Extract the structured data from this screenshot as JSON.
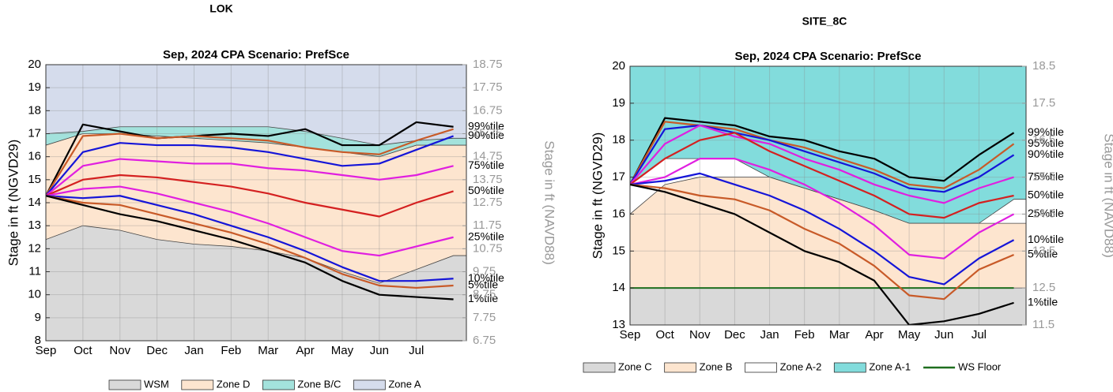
{
  "chart_data": [
    {
      "type": "line",
      "suptitle": "LOK",
      "title": "Sep, 2024  CPA Scenario: PrefSce",
      "ylabel": "Stage in ft (NGVD29)",
      "y2label": "Stage in ft (NAVD88)",
      "categories": [
        "Sep",
        "Oct",
        "Nov",
        "Dec",
        "Jan",
        "Feb",
        "Mar",
        "Apr",
        "May",
        "Jun",
        "Jul",
        null
      ],
      "ylim": [
        8,
        20
      ],
      "yticks": [
        8,
        9,
        10,
        11,
        12,
        13,
        14,
        15,
        16,
        17,
        18,
        19,
        20
      ],
      "y2lim": [
        6.75,
        18.75
      ],
      "y2ticks": [
        6.75,
        7.75,
        8.75,
        9.75,
        10.75,
        11.75,
        12.75,
        13.75,
        14.75,
        15.75,
        16.75,
        17.75,
        18.75
      ],
      "grid": true,
      "areas": [
        {
          "name": "WSM",
          "color": "#d9d9d9",
          "values": [
            12.4,
            13.0,
            12.8,
            12.4,
            12.2,
            12.1,
            11.9,
            11.6,
            11.0,
            10.5,
            11.1,
            11.7
          ]
        },
        {
          "name": "Zone D",
          "color": "#fde5cf",
          "values": [
            16.5,
            17.0,
            17.0,
            16.9,
            16.8,
            16.7,
            16.6,
            16.4,
            16.2,
            16.0,
            16.5,
            16.5
          ]
        },
        {
          "name": "Zone B/C",
          "color": "#a3e2dc",
          "values": [
            17.0,
            17.1,
            17.3,
            17.3,
            17.3,
            17.3,
            17.3,
            17.1,
            16.8,
            16.5,
            16.7,
            16.8
          ]
        },
        {
          "name": "Zone A",
          "color": "#d5dcec"
        }
      ],
      "series": [
        {
          "name": "99%tile",
          "color": "#000000",
          "values": [
            14.3,
            17.4,
            17.1,
            16.8,
            16.9,
            17.0,
            16.9,
            17.2,
            16.5,
            16.5,
            17.5,
            17.3
          ]
        },
        {
          "color": "#c85a28",
          "values": [
            14.3,
            16.9,
            17.0,
            16.8,
            16.9,
            16.8,
            16.7,
            16.4,
            16.2,
            16.1,
            16.7,
            17.2
          ]
        },
        {
          "name": "90%tile",
          "color": "#1515d8",
          "values": [
            14.3,
            16.2,
            16.6,
            16.5,
            16.5,
            16.4,
            16.2,
            15.9,
            15.6,
            15.7,
            16.3,
            16.9
          ]
        },
        {
          "name": "75%tile",
          "color": "#e01fe0",
          "values": [
            14.3,
            15.6,
            15.9,
            15.8,
            15.7,
            15.7,
            15.5,
            15.4,
            15.2,
            15.0,
            15.2,
            15.6
          ]
        },
        {
          "name": "50%tile",
          "color": "#d42020",
          "values": [
            14.3,
            15.0,
            15.2,
            15.1,
            14.9,
            14.7,
            14.4,
            14.0,
            13.7,
            13.4,
            14.0,
            14.5
          ]
        },
        {
          "name": "25%tile",
          "color": "#e01fe0",
          "values": [
            14.3,
            14.6,
            14.7,
            14.4,
            14.0,
            13.6,
            13.1,
            12.5,
            11.9,
            11.7,
            12.1,
            12.5
          ]
        },
        {
          "name": "10%tile",
          "color": "#1515d8",
          "values": [
            14.3,
            14.2,
            14.3,
            13.9,
            13.5,
            13.0,
            12.5,
            11.9,
            11.2,
            10.6,
            10.6,
            10.7
          ]
        },
        {
          "name": "5%tile",
          "color": "#c85a28",
          "values": [
            14.3,
            14.0,
            13.9,
            13.5,
            13.1,
            12.7,
            12.2,
            11.6,
            10.9,
            10.4,
            10.3,
            10.4
          ]
        },
        {
          "name": "1%tile",
          "color": "#000000",
          "values": [
            14.3,
            13.9,
            13.5,
            13.2,
            12.8,
            12.4,
            11.9,
            11.4,
            10.6,
            10.0,
            9.9,
            9.8
          ]
        }
      ],
      "reference_lines": []
    },
    {
      "type": "line",
      "suptitle": "SITE_8C",
      "title": "Sep, 2024  CPA Scenario: PrefSce",
      "ylabel": "Stage in ft (NGVD29)",
      "y2label": "Stage in ft (NAVD88)",
      "categories": [
        "Sep",
        "Oct",
        "Nov",
        "Dec",
        "Jan",
        "Feb",
        "Mar",
        "Apr",
        "May",
        "Jun",
        "Jul",
        null
      ],
      "ylim": [
        13,
        20
      ],
      "yticks": [
        13,
        14,
        15,
        16,
        17,
        18,
        19,
        20
      ],
      "y2lim": [
        11.5,
        18.5
      ],
      "y2ticks": [
        11.5,
        12.5,
        13.5,
        14.5,
        15.5,
        16.5,
        17.5,
        18.5
      ],
      "grid": true,
      "areas": [
        {
          "name": "Zone C",
          "color": "#d9d9d9",
          "values": [
            14,
            14,
            14,
            14,
            14,
            14,
            14,
            14,
            14,
            14,
            14,
            14
          ]
        },
        {
          "name": "Zone B",
          "color": "#fde5cf",
          "values": [
            16.0,
            16.8,
            17.0,
            17.0,
            17.0,
            16.7,
            16.4,
            16.1,
            15.75,
            15.75,
            15.75,
            15.75
          ]
        },
        {
          "name": "Zone A-2",
          "color": "#ffffff",
          "values": [
            16.8,
            17.5,
            17.5,
            17.5,
            17.0,
            16.7,
            16.4,
            16.1,
            15.75,
            15.75,
            15.75,
            16.4
          ]
        },
        {
          "name": "Zone A-1",
          "color": "#82dcdc"
        }
      ],
      "series": [
        {
          "name": "99%tile",
          "color": "#000000",
          "values": [
            16.8,
            18.6,
            18.5,
            18.4,
            18.1,
            18.0,
            17.7,
            17.5,
            17.0,
            16.9,
            17.6,
            18.2
          ]
        },
        {
          "name": "95%tile",
          "color": "#c85a28",
          "values": [
            16.8,
            18.5,
            18.4,
            18.3,
            18.0,
            17.8,
            17.5,
            17.2,
            16.8,
            16.7,
            17.2,
            17.9
          ]
        },
        {
          "name": "90%tile",
          "color": "#1515d8",
          "values": [
            16.8,
            18.3,
            18.4,
            18.2,
            18.0,
            17.7,
            17.4,
            17.1,
            16.7,
            16.6,
            17.0,
            17.6
          ]
        },
        {
          "name": "75%tile",
          "color": "#e01fe0",
          "values": [
            16.8,
            17.9,
            18.4,
            18.1,
            17.9,
            17.5,
            17.2,
            16.8,
            16.5,
            16.3,
            16.7,
            17.0
          ]
        },
        {
          "name": "50%tile",
          "color": "#d42020",
          "values": [
            16.8,
            17.5,
            18.0,
            18.2,
            17.7,
            17.3,
            16.9,
            16.5,
            16.0,
            15.9,
            16.3,
            16.5
          ]
        },
        {
          "name": "25%tile",
          "color": "#e01fe0",
          "values": [
            16.8,
            17.0,
            17.5,
            17.5,
            17.2,
            16.8,
            16.3,
            15.7,
            14.9,
            14.8,
            15.5,
            16.0
          ]
        },
        {
          "name": "10%tile",
          "color": "#1515d8",
          "values": [
            16.8,
            16.9,
            17.1,
            16.8,
            16.5,
            16.1,
            15.6,
            15.0,
            14.3,
            14.1,
            14.8,
            15.3
          ]
        },
        {
          "name": "5%tile",
          "color": "#c85a28",
          "values": [
            16.8,
            16.7,
            16.5,
            16.4,
            16.1,
            15.6,
            15.2,
            14.6,
            13.8,
            13.7,
            14.5,
            14.9
          ]
        },
        {
          "name": "1%tile",
          "color": "#000000",
          "values": [
            16.8,
            16.6,
            16.3,
            16.0,
            15.5,
            15.0,
            14.7,
            14.2,
            13.0,
            13.1,
            13.3,
            13.6
          ]
        }
      ],
      "reference_lines": [
        {
          "name": "WS Floor",
          "color": "#1e6e1e",
          "values": [
            14,
            14,
            14,
            14,
            14,
            14,
            14,
            14,
            14,
            14,
            14,
            14
          ]
        }
      ]
    }
  ]
}
